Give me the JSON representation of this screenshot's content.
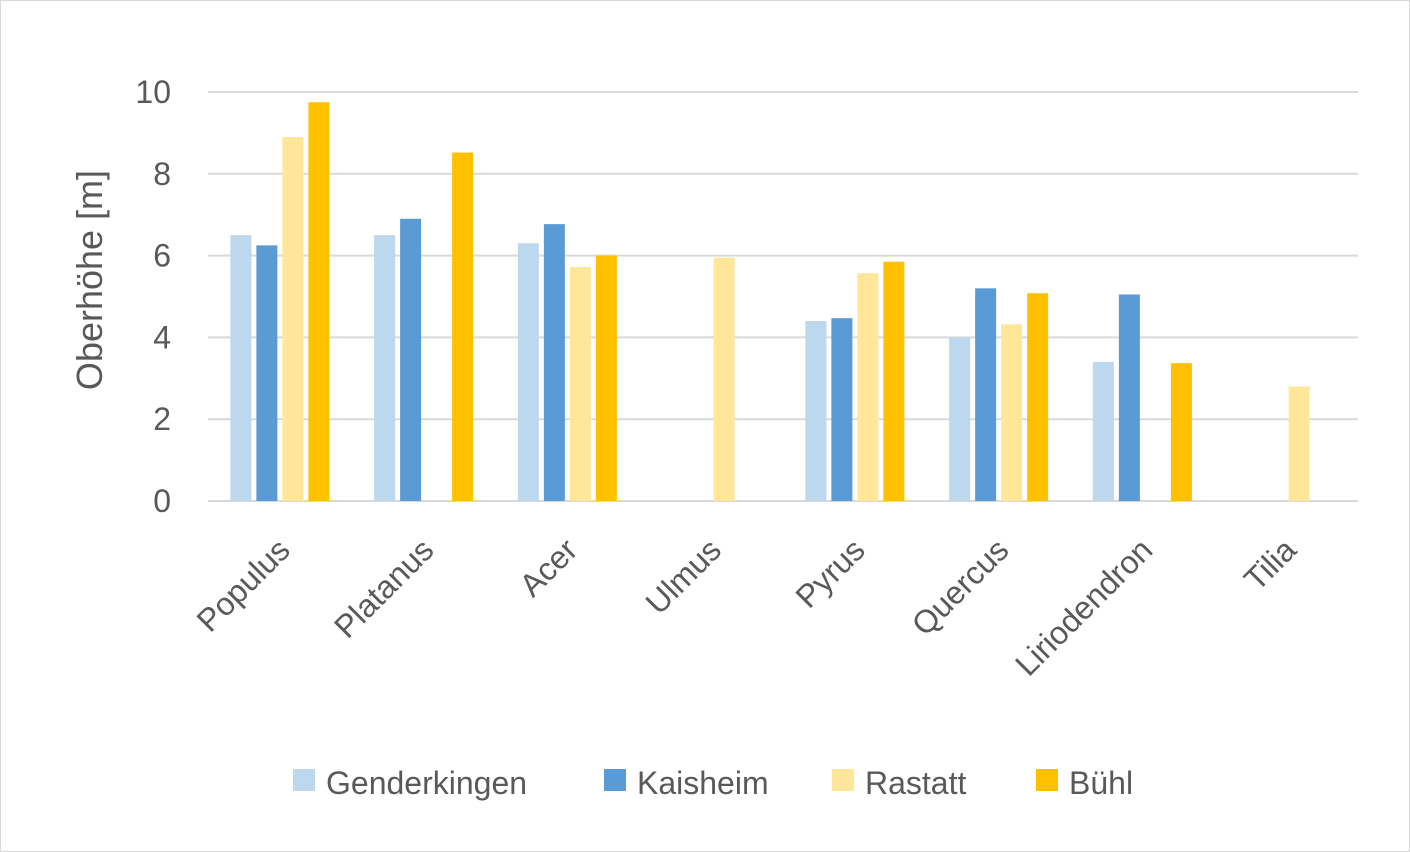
{
  "chart_data": {
    "type": "bar",
    "title": "",
    "xlabel": "",
    "ylabel": "Oberhöhe [m]",
    "ylim": [
      0,
      10
    ],
    "yticks": [
      0,
      2,
      4,
      6,
      8,
      10
    ],
    "grid": true,
    "legend_position": "bottom",
    "categories": [
      "Populus",
      "Platanus",
      "Acer",
      "Ulmus",
      "Pyrus",
      "Quercus",
      "Liriodendron",
      "Tilia"
    ],
    "series": [
      {
        "name": "Genderkingen",
        "color": "#bdd7ee",
        "values": [
          6.5,
          6.5,
          6.3,
          null,
          4.4,
          4.0,
          3.4,
          null
        ]
      },
      {
        "name": "Kaisheim",
        "color": "#5b9bd5",
        "values": [
          6.25,
          6.9,
          6.77,
          null,
          4.47,
          5.2,
          5.05,
          null
        ]
      },
      {
        "name": "Rastatt",
        "color": "#ffe699",
        "values": [
          8.9,
          null,
          5.72,
          5.95,
          5.57,
          4.32,
          null,
          2.8
        ]
      },
      {
        "name": "Bühl",
        "color": "#ffc000",
        "values": [
          9.75,
          8.52,
          6.0,
          null,
          5.85,
          5.08,
          3.37,
          null
        ]
      }
    ]
  },
  "colors": {
    "grid": "#d9d9d9",
    "text": "#595959",
    "border": "#d9d9d9"
  }
}
